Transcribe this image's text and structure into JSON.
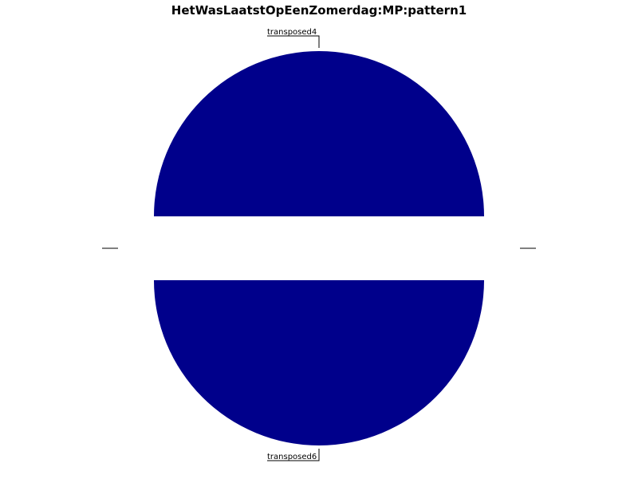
{
  "chart_data": {
    "type": "pie",
    "title": "HetWasLaatstOpEenZomerdag:MP:pattern1",
    "colors": {
      "slice_fill": "#00008b",
      "background": "#ffffff",
      "leader": "#000000"
    },
    "slices": [
      {
        "label": "transposed4",
        "value": 1,
        "color": "#00008b",
        "shown": true
      },
      {
        "label": "",
        "value": 0,
        "color": "#00008b",
        "shown": false
      },
      {
        "label": "transposed6",
        "value": 1,
        "color": "#00008b",
        "shown": true
      },
      {
        "label": "",
        "value": 0,
        "color": "#00008b",
        "shown": false
      }
    ],
    "exploded": true,
    "legend": "none"
  }
}
